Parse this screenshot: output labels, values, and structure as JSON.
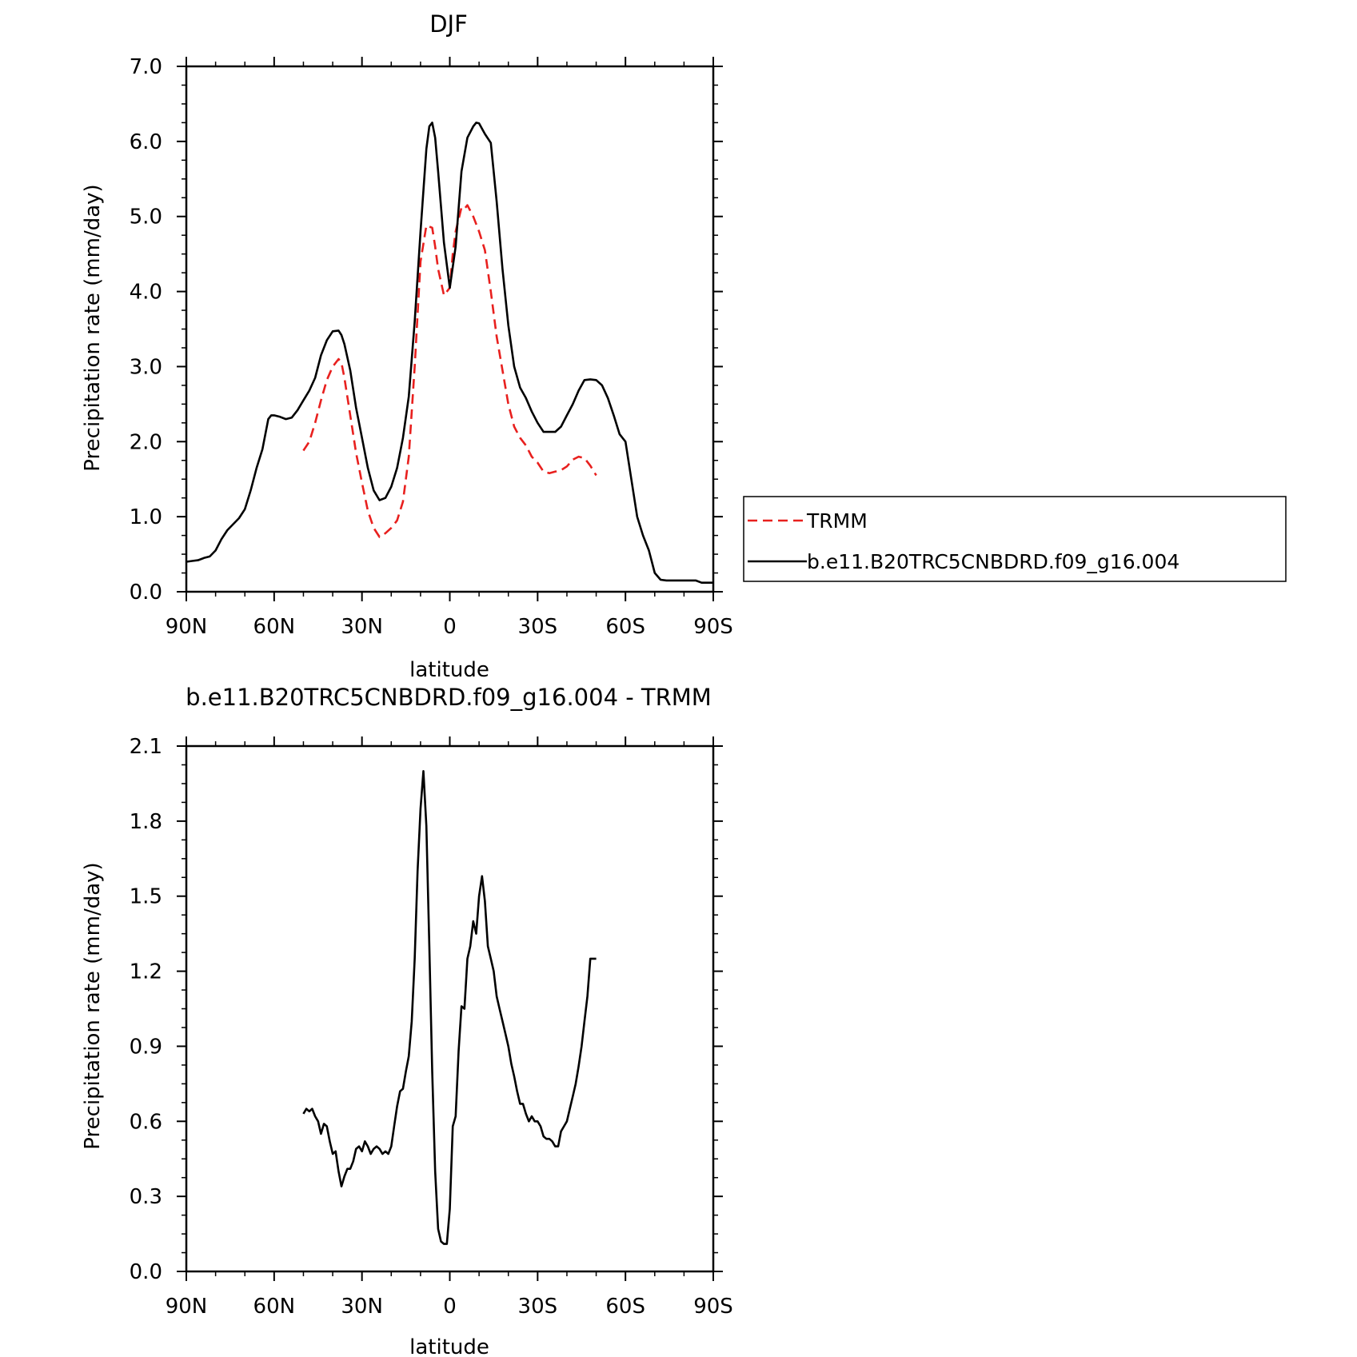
{
  "colors": {
    "model": "#000000",
    "obs": "#e8201e",
    "background": "#ffffff"
  },
  "chart_data": [
    {
      "type": "line",
      "title": "DJF",
      "xlabel": "latitude",
      "ylabel": "Precipitation rate (mm/day)",
      "xlim": [
        90,
        -90
      ],
      "ylim": [
        0.0,
        7.0
      ],
      "xticks": [
        90,
        60,
        30,
        0,
        -30,
        -60,
        -90
      ],
      "xtick_labels": [
        "90N",
        "60N",
        "30N",
        "0",
        "30S",
        "60S",
        "90S"
      ],
      "yticks": [
        0,
        1,
        2,
        3,
        4,
        5,
        6,
        7
      ],
      "ytick_labels": [
        "0.0",
        "1.0",
        "2.0",
        "3.0",
        "4.0",
        "5.0",
        "6.0",
        "7.0"
      ],
      "grid": false,
      "legend": "outside-right",
      "series": [
        {
          "name": "TRMM",
          "style": "dashed",
          "color": "#e8201e",
          "x": [
            50,
            48,
            46,
            44,
            42,
            40,
            38,
            37,
            36,
            34,
            32,
            30,
            28,
            26,
            24,
            22,
            20,
            18,
            16,
            14,
            12,
            10,
            8,
            6,
            5,
            4,
            2,
            0,
            -1,
            -2,
            -4,
            -5,
            -6,
            -8,
            -10,
            -12,
            -14,
            -16,
            -18,
            -20,
            -22,
            -24,
            -26,
            -28,
            -30,
            -32,
            -34,
            -36,
            -38,
            -40,
            -42,
            -44,
            -46,
            -48,
            -50
          ],
          "y": [
            1.88,
            2.0,
            2.25,
            2.55,
            2.82,
            3.0,
            3.1,
            3.05,
            2.85,
            2.35,
            1.85,
            1.45,
            1.08,
            0.85,
            0.73,
            0.78,
            0.85,
            0.95,
            1.2,
            1.8,
            3.0,
            4.4,
            4.88,
            4.85,
            4.6,
            4.3,
            3.95,
            4.05,
            4.5,
            4.8,
            5.12,
            5.1,
            5.15,
            5.0,
            4.8,
            4.55,
            4.0,
            3.4,
            2.95,
            2.5,
            2.2,
            2.05,
            1.95,
            1.8,
            1.72,
            1.6,
            1.58,
            1.6,
            1.62,
            1.67,
            1.76,
            1.8,
            1.78,
            1.68,
            1.55
          ]
        },
        {
          "name": "b.e11.B20TRC5CNBDRD.f09_g16.004",
          "style": "solid",
          "color": "#000000",
          "x": [
            90,
            88,
            86,
            84,
            82,
            80,
            78,
            76,
            74,
            72,
            70,
            68,
            66,
            64,
            62,
            61,
            60,
            58,
            56,
            54,
            52,
            50,
            48,
            46,
            44,
            42,
            40,
            38,
            37,
            36,
            34,
            32,
            30,
            28,
            26,
            24,
            22,
            20,
            18,
            16,
            14,
            12,
            10,
            8,
            7,
            6,
            5,
            4,
            2,
            0,
            -2,
            -4,
            -6,
            -8,
            -9,
            -10,
            -12,
            -14,
            -16,
            -18,
            -20,
            -22,
            -24,
            -26,
            -28,
            -30,
            -32,
            -34,
            -36,
            -38,
            -40,
            -42,
            -44,
            -46,
            -48,
            -50,
            -52,
            -54,
            -56,
            -58,
            -60,
            -62,
            -64,
            -66,
            -68,
            -70,
            -72,
            -74,
            -76,
            -78,
            -80,
            -82,
            -84,
            -86,
            -88,
            -90
          ],
          "y": [
            0.4,
            0.41,
            0.42,
            0.45,
            0.47,
            0.55,
            0.7,
            0.82,
            0.9,
            0.98,
            1.1,
            1.35,
            1.65,
            1.9,
            2.3,
            2.35,
            2.35,
            2.33,
            2.3,
            2.32,
            2.42,
            2.55,
            2.68,
            2.85,
            3.15,
            3.35,
            3.47,
            3.48,
            3.42,
            3.3,
            2.95,
            2.45,
            2.05,
            1.65,
            1.35,
            1.22,
            1.25,
            1.4,
            1.65,
            2.05,
            2.6,
            3.6,
            4.8,
            5.9,
            6.2,
            6.25,
            6.05,
            5.6,
            4.65,
            4.05,
            4.6,
            5.6,
            6.05,
            6.2,
            6.25,
            6.24,
            6.1,
            5.98,
            5.2,
            4.3,
            3.55,
            3.0,
            2.72,
            2.58,
            2.4,
            2.25,
            2.13,
            2.13,
            2.13,
            2.2,
            2.35,
            2.5,
            2.68,
            2.82,
            2.83,
            2.82,
            2.75,
            2.58,
            2.35,
            2.1,
            2.0,
            1.5,
            1.0,
            0.75,
            0.55,
            0.25,
            0.16,
            0.15,
            0.15,
            0.15,
            0.15,
            0.15,
            0.15,
            0.12,
            0.12,
            0.12
          ]
        }
      ]
    },
    {
      "type": "line",
      "title": "b.e11.B20TRC5CNBDRD.f09_g16.004 - TRMM",
      "xlabel": "latitude",
      "ylabel": "Precipitation rate (mm/day)",
      "xlim": [
        90,
        -90
      ],
      "ylim": [
        0.0,
        2.1
      ],
      "xticks": [
        90,
        60,
        30,
        0,
        -30,
        -60,
        -90
      ],
      "xtick_labels": [
        "90N",
        "60N",
        "30N",
        "0",
        "30S",
        "60S",
        "90S"
      ],
      "yticks": [
        0,
        0.3,
        0.6,
        0.9,
        1.2,
        1.5,
        1.8,
        2.1
      ],
      "ytick_labels": [
        "0.0",
        "0.3",
        "0.6",
        "0.9",
        "1.2",
        "1.5",
        "1.8",
        "2.1"
      ],
      "grid": false,
      "series": [
        {
          "style": "solid",
          "color": "#000000",
          "x": [
            50,
            49,
            48,
            47,
            46,
            45,
            44,
            43,
            42,
            41,
            40,
            39,
            38,
            37,
            36,
            35,
            34,
            33,
            32,
            31,
            30,
            29,
            28,
            27,
            26,
            25,
            24,
            23,
            22,
            21,
            20,
            19,
            18,
            17,
            16,
            15,
            14,
            13,
            12,
            11,
            10,
            9,
            8,
            7,
            6,
            5,
            4,
            3,
            2,
            1,
            0,
            -1,
            -2,
            -3,
            -4,
            -5,
            -6,
            -7,
            -8,
            -9,
            -10,
            -11,
            -12,
            -13,
            -14,
            -15,
            -16,
            -17,
            -18,
            -19,
            -20,
            -21,
            -22,
            -23,
            -24,
            -25,
            -26,
            -27,
            -28,
            -29,
            -30,
            -31,
            -32,
            -33,
            -34,
            -35,
            -36,
            -37,
            -38,
            -39,
            -40,
            -41,
            -42,
            -43,
            -44,
            -45,
            -46,
            -47,
            -48,
            -49,
            -50
          ],
          "y": [
            0.63,
            0.65,
            0.64,
            0.65,
            0.62,
            0.6,
            0.55,
            0.59,
            0.58,
            0.52,
            0.47,
            0.48,
            0.4,
            0.34,
            0.38,
            0.41,
            0.41,
            0.44,
            0.49,
            0.5,
            0.48,
            0.52,
            0.5,
            0.47,
            0.49,
            0.5,
            0.49,
            0.47,
            0.48,
            0.47,
            0.5,
            0.58,
            0.66,
            0.72,
            0.73,
            0.8,
            0.86,
            1.0,
            1.25,
            1.6,
            1.85,
            2.0,
            1.78,
            1.3,
            0.8,
            0.4,
            0.17,
            0.12,
            0.11,
            0.11,
            0.25,
            0.58,
            0.62,
            0.88,
            1.06,
            1.05,
            1.25,
            1.3,
            1.4,
            1.35,
            1.5,
            1.58,
            1.48,
            1.3,
            1.25,
            1.2,
            1.1,
            1.05,
            1.0,
            0.95,
            0.9,
            0.83,
            0.78,
            0.72,
            0.67,
            0.67,
            0.63,
            0.6,
            0.62,
            0.6,
            0.6,
            0.58,
            0.54,
            0.53,
            0.53,
            0.52,
            0.5,
            0.5,
            0.56,
            0.58,
            0.6,
            0.65,
            0.7,
            0.75,
            0.82,
            0.9,
            1.0,
            1.1,
            1.25,
            1.25,
            1.25
          ]
        }
      ]
    }
  ]
}
